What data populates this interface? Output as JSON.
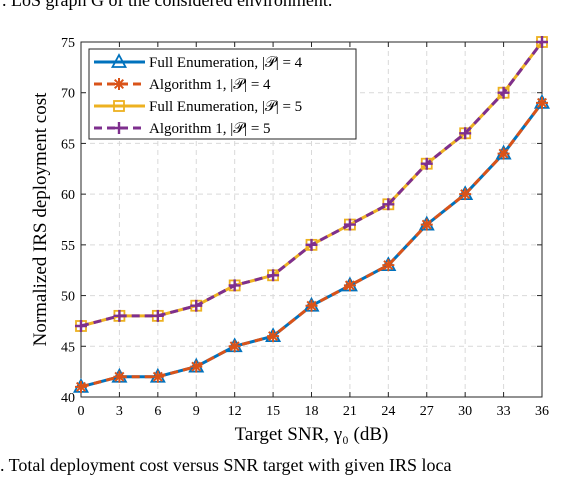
{
  "captions": {
    "top": ". LoS graph G of the considered environment.",
    "bottom": ". Total deployment cost versus SNR target with given IRS loca"
  },
  "chart_data": {
    "type": "line",
    "xlabel": "Target SNR, γ₀ (dB)",
    "ylabel": "Normalized IRS deployment cost",
    "x": [
      0,
      3,
      6,
      9,
      12,
      15,
      18,
      21,
      24,
      27,
      30,
      33,
      36
    ],
    "xlim": [
      0,
      36
    ],
    "ylim": [
      40,
      75
    ],
    "xticks": [
      0,
      3,
      6,
      9,
      12,
      15,
      18,
      21,
      24,
      27,
      30,
      33,
      36
    ],
    "yticks": [
      40,
      45,
      50,
      55,
      60,
      65,
      70,
      75
    ],
    "grid": true,
    "legend_position": "top-left",
    "series": [
      {
        "name": "Full Enumeration, |𝒫| = 4",
        "color": "#0072BD",
        "marker": "triangle",
        "dash": "solid",
        "values": [
          41,
          42,
          42,
          43,
          45,
          46,
          49,
          51,
          53,
          57,
          60,
          64,
          69
        ]
      },
      {
        "name": "Algorithm 1, |𝒫| = 4",
        "color": "#D95319",
        "marker": "asterisk",
        "dash": "dashed",
        "values": [
          41,
          42,
          42,
          43,
          45,
          46,
          49,
          51,
          53,
          57,
          60,
          64,
          69
        ]
      },
      {
        "name": "Full Enumeration, |𝒫| = 5",
        "color": "#EDB120",
        "marker": "square",
        "dash": "solid",
        "values": [
          47,
          48,
          48,
          49,
          51,
          52,
          55,
          57,
          59,
          63,
          66,
          70,
          75
        ]
      },
      {
        "name": "Algorithm 1, |𝒫| = 5",
        "color": "#7E2F8E",
        "marker": "plus",
        "dash": "dashed",
        "values": [
          47,
          48,
          48,
          49,
          51,
          52,
          55,
          57,
          59,
          63,
          66,
          70,
          75
        ]
      }
    ]
  }
}
